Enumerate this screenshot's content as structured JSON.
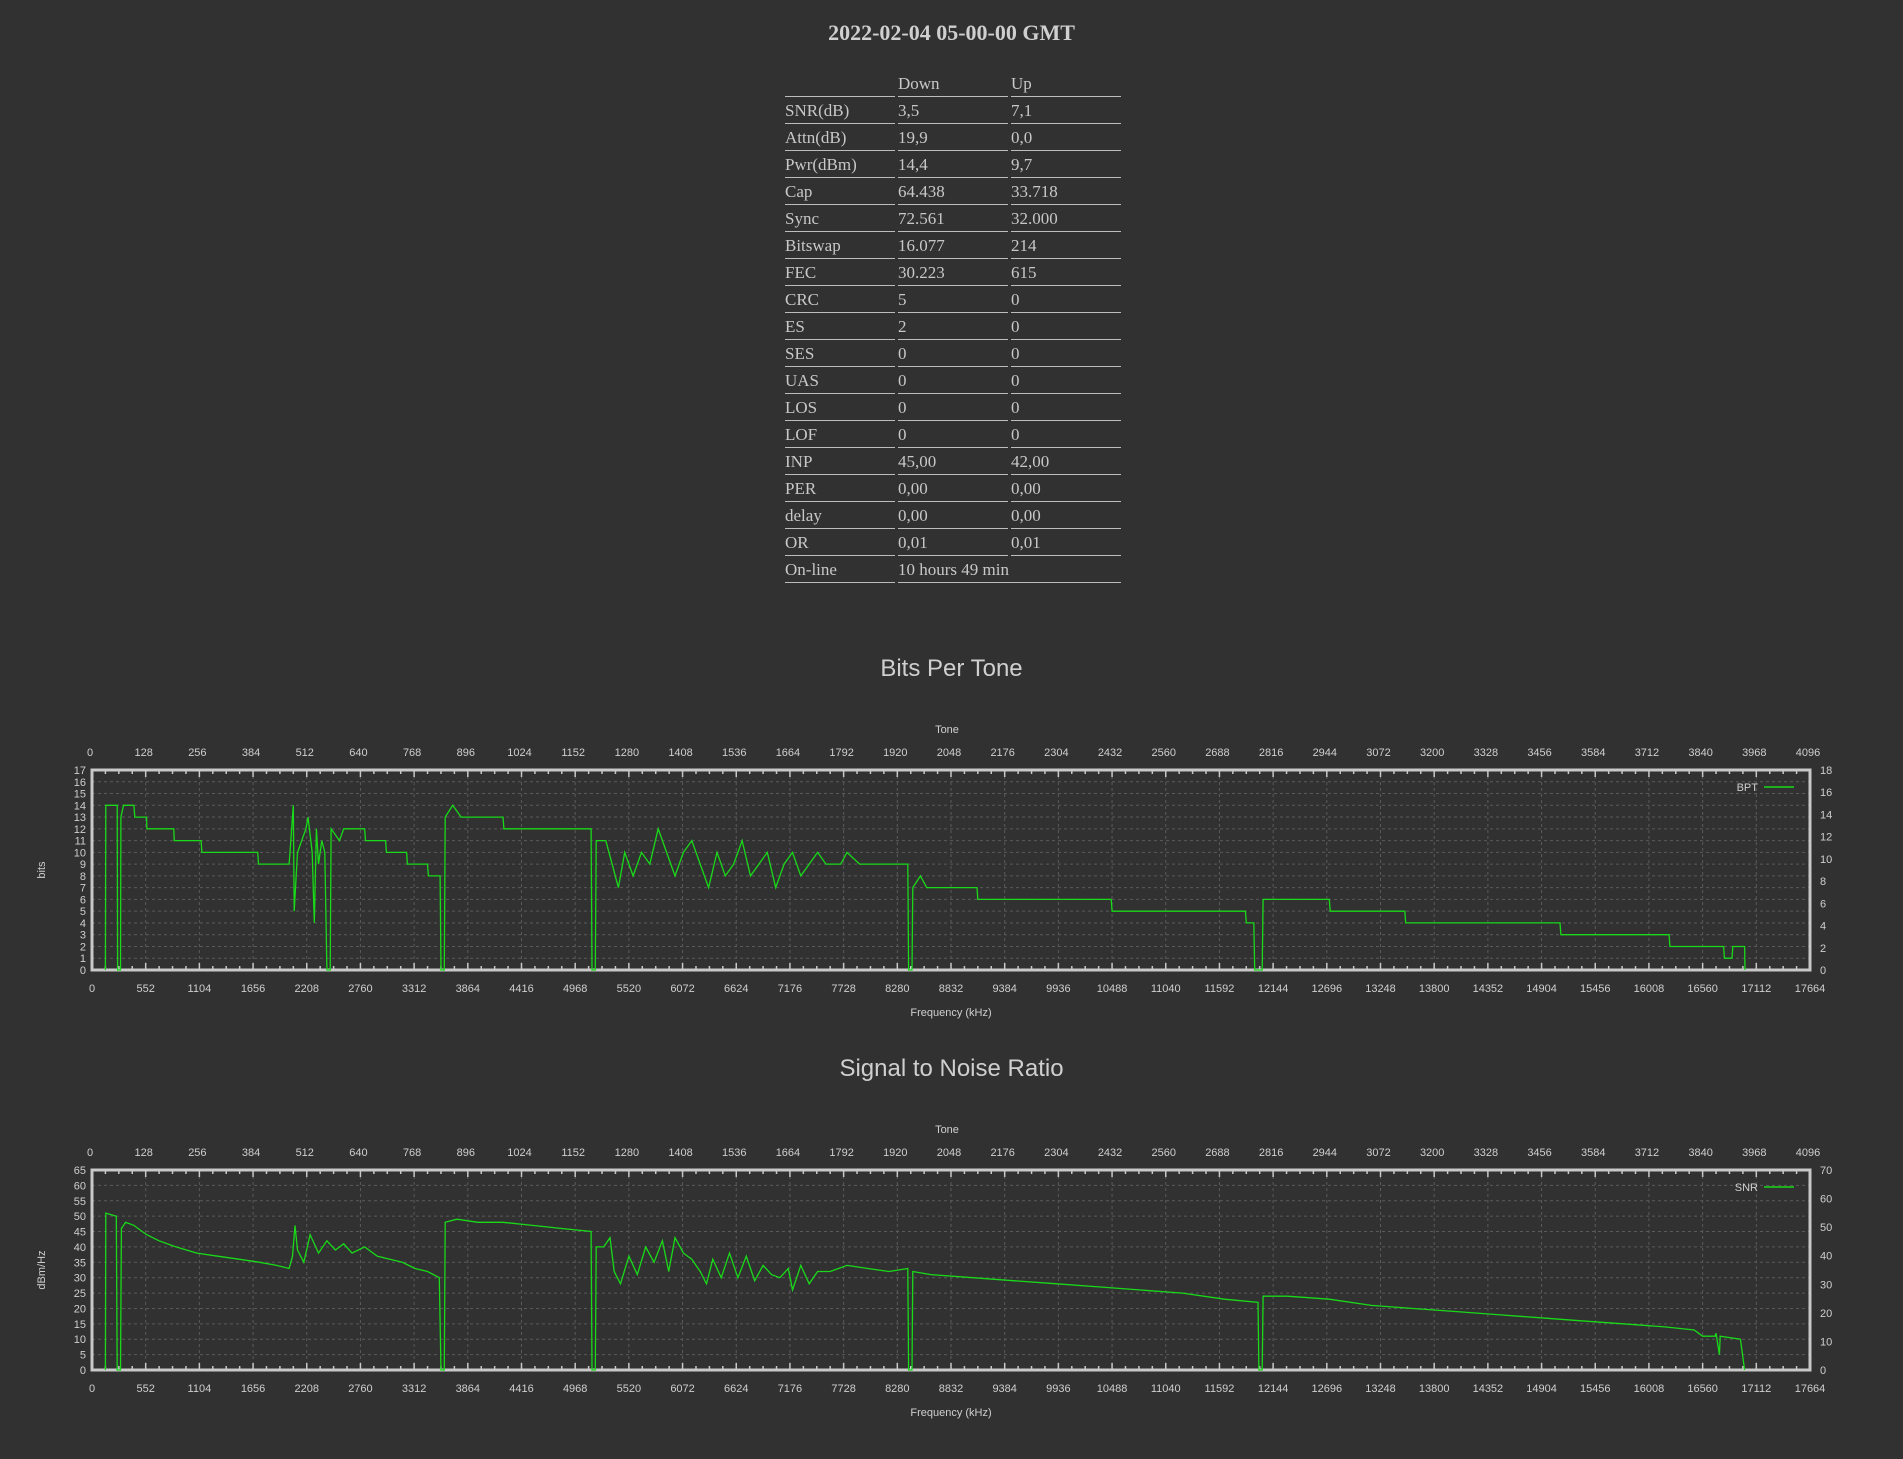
{
  "title": "2022-02-04 05-00-00 GMT",
  "stats": {
    "headers": [
      "",
      "Down",
      "Up"
    ],
    "rows": [
      [
        "SNR(dB)",
        "3,5",
        "7,1"
      ],
      [
        "Attn(dB)",
        "19,9",
        "0,0"
      ],
      [
        "Pwr(dBm)",
        "14,4",
        "9,7"
      ],
      [
        "Cap",
        "64.438",
        "33.718"
      ],
      [
        "Sync",
        "72.561",
        "32.000"
      ],
      [
        "Bitswap",
        "16.077",
        "214"
      ],
      [
        "FEC",
        "30.223",
        "615"
      ],
      [
        "CRC",
        "5",
        "0"
      ],
      [
        "ES",
        "2",
        "0"
      ],
      [
        "SES",
        "0",
        "0"
      ],
      [
        "UAS",
        "0",
        "0"
      ],
      [
        "LOS",
        "0",
        "0"
      ],
      [
        "LOF",
        "0",
        "0"
      ],
      [
        "INP",
        "45,00",
        "42,00"
      ],
      [
        "PER",
        "0,00",
        "0,00"
      ],
      [
        "delay",
        "0,00",
        "0,00"
      ],
      [
        "OR",
        "0,01",
        "0,01"
      ],
      [
        "On-line",
        "10 hours 49 min",
        ""
      ]
    ]
  },
  "colors": {
    "line": "#19d919",
    "axis": "#c8c8c8",
    "grid": "#5a5a5a"
  },
  "chart_data": [
    {
      "type": "line",
      "title": "Bits Per Tone",
      "x2label": "Tone",
      "xlabel": "Frequency (kHz)",
      "ylabel": "bits",
      "legend": "BPT",
      "legend_position": "top-right",
      "grid": true,
      "x_ticks": [
        "0",
        "552",
        "1104",
        "1656",
        "2208",
        "2760",
        "3312",
        "3864",
        "4416",
        "4968",
        "5520",
        "6072",
        "6624",
        "7176",
        "7728",
        "8280",
        "8832",
        "9384",
        "9936",
        "10488",
        "11040",
        "11592",
        "12144",
        "12696",
        "13248",
        "13800",
        "14352",
        "14904",
        "15456",
        "16008",
        "16560",
        "17112",
        "17664"
      ],
      "x2_ticks": [
        "0",
        "128",
        "256",
        "384",
        "512",
        "640",
        "768",
        "896",
        "1024",
        "1152",
        "1280",
        "1408",
        "1536",
        "1664",
        "1792",
        "1920",
        "2048",
        "2176",
        "2304",
        "2432",
        "2560",
        "2688",
        "2816",
        "2944",
        "3072",
        "3200",
        "3328",
        "3456",
        "3584",
        "3712",
        "3840",
        "3968",
        "4096"
      ],
      "ylim": [
        0,
        17
      ],
      "y_ticks": [
        "0",
        "1",
        "2",
        "3",
        "4",
        "5",
        "6",
        "7",
        "8",
        "9",
        "10",
        "11",
        "12",
        "13",
        "14",
        "15",
        "16",
        "17"
      ],
      "y2lim": [
        0,
        18
      ],
      "y2_ticks": [
        "0",
        "2",
        "4",
        "6",
        "8",
        "10",
        "12",
        "14",
        "16",
        "18"
      ],
      "xlim": [
        0,
        4096
      ],
      "points": [
        [
          32,
          0
        ],
        [
          33,
          14
        ],
        [
          60,
          14
        ],
        [
          61,
          0
        ],
        [
          68,
          0
        ],
        [
          69,
          13
        ],
        [
          75,
          14
        ],
        [
          100,
          14
        ],
        [
          102,
          13
        ],
        [
          130,
          13
        ],
        [
          131,
          12
        ],
        [
          195,
          12
        ],
        [
          196,
          11
        ],
        [
          260,
          11
        ],
        [
          262,
          10
        ],
        [
          395,
          10
        ],
        [
          397,
          9
        ],
        [
          470,
          9
        ],
        [
          472,
          10
        ],
        [
          480,
          14
        ],
        [
          482,
          5
        ],
        [
          490,
          10
        ],
        [
          510,
          12
        ],
        [
          515,
          13
        ],
        [
          525,
          10
        ],
        [
          530,
          4
        ],
        [
          535,
          12
        ],
        [
          540,
          9
        ],
        [
          548,
          11
        ],
        [
          555,
          10
        ],
        [
          560,
          0
        ],
        [
          568,
          0
        ],
        [
          570,
          12
        ],
        [
          590,
          11
        ],
        [
          600,
          12
        ],
        [
          650,
          12
        ],
        [
          652,
          11
        ],
        [
          700,
          11
        ],
        [
          702,
          10
        ],
        [
          750,
          10
        ],
        [
          752,
          9
        ],
        [
          800,
          9
        ],
        [
          802,
          8
        ],
        [
          830,
          8
        ],
        [
          832,
          0
        ],
        [
          840,
          0
        ],
        [
          842,
          13
        ],
        [
          860,
          14
        ],
        [
          880,
          13
        ],
        [
          980,
          13
        ],
        [
          982,
          12
        ],
        [
          1190,
          12
        ],
        [
          1192,
          0
        ],
        [
          1200,
          0
        ],
        [
          1202,
          11
        ],
        [
          1225,
          11
        ],
        [
          1240,
          9
        ],
        [
          1255,
          7
        ],
        [
          1270,
          10
        ],
        [
          1290,
          8
        ],
        [
          1310,
          10
        ],
        [
          1330,
          9
        ],
        [
          1350,
          12
        ],
        [
          1370,
          10
        ],
        [
          1390,
          8
        ],
        [
          1410,
          10
        ],
        [
          1430,
          11
        ],
        [
          1450,
          9
        ],
        [
          1470,
          7
        ],
        [
          1490,
          10
        ],
        [
          1510,
          8
        ],
        [
          1530,
          9
        ],
        [
          1550,
          11
        ],
        [
          1570,
          8
        ],
        [
          1590,
          9
        ],
        [
          1610,
          10
        ],
        [
          1630,
          7
        ],
        [
          1650,
          9
        ],
        [
          1670,
          10
        ],
        [
          1690,
          8
        ],
        [
          1710,
          9
        ],
        [
          1730,
          10
        ],
        [
          1750,
          9
        ],
        [
          1785,
          9
        ],
        [
          1800,
          10
        ],
        [
          1830,
          9
        ],
        [
          1945,
          9
        ],
        [
          1947,
          0
        ],
        [
          1955,
          0
        ],
        [
          1957,
          7
        ],
        [
          1975,
          8
        ],
        [
          1990,
          7
        ],
        [
          2110,
          7
        ],
        [
          2112,
          6
        ],
        [
          2430,
          6
        ],
        [
          2432,
          5
        ],
        [
          2750,
          5
        ],
        [
          2752,
          4
        ],
        [
          2770,
          4
        ],
        [
          2772,
          0
        ],
        [
          2790,
          0
        ],
        [
          2792,
          6
        ],
        [
          2950,
          6
        ],
        [
          2952,
          5
        ],
        [
          3130,
          5
        ],
        [
          3132,
          4
        ],
        [
          3500,
          4
        ],
        [
          3502,
          3
        ],
        [
          3760,
          3
        ],
        [
          3762,
          2
        ],
        [
          3890,
          2
        ],
        [
          3892,
          1
        ],
        [
          3910,
          1
        ],
        [
          3912,
          2
        ],
        [
          3940,
          2
        ],
        [
          3941,
          0
        ]
      ]
    },
    {
      "type": "line",
      "title": "Signal to Noise Ratio",
      "x2label": "Tone",
      "xlabel": "Frequency (kHz)",
      "ylabel": "dBm/Hz",
      "legend": "SNR",
      "legend_position": "top-right",
      "grid": true,
      "x_ticks": [
        "0",
        "552",
        "1104",
        "1656",
        "2208",
        "2760",
        "3312",
        "3864",
        "4416",
        "4968",
        "5520",
        "6072",
        "6624",
        "7176",
        "7728",
        "8280",
        "8832",
        "9384",
        "9936",
        "10488",
        "11040",
        "11592",
        "12144",
        "12696",
        "13248",
        "13800",
        "14352",
        "14904",
        "15456",
        "16008",
        "16560",
        "17112",
        "17664"
      ],
      "x2_ticks": [
        "0",
        "128",
        "256",
        "384",
        "512",
        "640",
        "768",
        "896",
        "1024",
        "1152",
        "1280",
        "1408",
        "1536",
        "1664",
        "1792",
        "1920",
        "2048",
        "2176",
        "2304",
        "2432",
        "2560",
        "2688",
        "2816",
        "2944",
        "3072",
        "3200",
        "3328",
        "3456",
        "3584",
        "3712",
        "3840",
        "3968",
        "4096"
      ],
      "ylim": [
        0,
        65
      ],
      "y_ticks": [
        "0",
        "5",
        "10",
        "15",
        "20",
        "25",
        "30",
        "35",
        "40",
        "45",
        "50",
        "55",
        "60",
        "65"
      ],
      "y2lim": [
        0,
        70
      ],
      "y2_ticks": [
        "0",
        "10",
        "20",
        "30",
        "40",
        "50",
        "60",
        "70"
      ],
      "xlim": [
        0,
        4096
      ],
      "points": [
        [
          32,
          0
        ],
        [
          33,
          51
        ],
        [
          58,
          50
        ],
        [
          60,
          0
        ],
        [
          68,
          0
        ],
        [
          70,
          46
        ],
        [
          80,
          48
        ],
        [
          100,
          47
        ],
        [
          130,
          44
        ],
        [
          160,
          42
        ],
        [
          200,
          40
        ],
        [
          250,
          38
        ],
        [
          300,
          37
        ],
        [
          350,
          36
        ],
        [
          400,
          35
        ],
        [
          440,
          34
        ],
        [
          470,
          33
        ],
        [
          478,
          37
        ],
        [
          484,
          47
        ],
        [
          490,
          39
        ],
        [
          505,
          35
        ],
        [
          520,
          44
        ],
        [
          540,
          38
        ],
        [
          560,
          42
        ],
        [
          580,
          39
        ],
        [
          600,
          41
        ],
        [
          620,
          38
        ],
        [
          650,
          40
        ],
        [
          680,
          37
        ],
        [
          710,
          36
        ],
        [
          740,
          35
        ],
        [
          770,
          33
        ],
        [
          800,
          32
        ],
        [
          828,
          30
        ],
        [
          832,
          0
        ],
        [
          840,
          0
        ],
        [
          842,
          48
        ],
        [
          870,
          49
        ],
        [
          920,
          48
        ],
        [
          980,
          48
        ],
        [
          1050,
          47
        ],
        [
          1120,
          46
        ],
        [
          1190,
          45
        ],
        [
          1192,
          0
        ],
        [
          1200,
          0
        ],
        [
          1202,
          40
        ],
        [
          1220,
          40
        ],
        [
          1235,
          43
        ],
        [
          1245,
          32
        ],
        [
          1260,
          28
        ],
        [
          1280,
          37
        ],
        [
          1300,
          31
        ],
        [
          1320,
          40
        ],
        [
          1340,
          35
        ],
        [
          1360,
          42
        ],
        [
          1375,
          32
        ],
        [
          1390,
          43
        ],
        [
          1410,
          38
        ],
        [
          1430,
          36
        ],
        [
          1450,
          32
        ],
        [
          1465,
          28
        ],
        [
          1480,
          36
        ],
        [
          1500,
          30
        ],
        [
          1520,
          38
        ],
        [
          1540,
          30
        ],
        [
          1560,
          37
        ],
        [
          1580,
          29
        ],
        [
          1600,
          34
        ],
        [
          1620,
          31
        ],
        [
          1640,
          30
        ],
        [
          1660,
          33
        ],
        [
          1670,
          26
        ],
        [
          1690,
          34
        ],
        [
          1710,
          28
        ],
        [
          1730,
          32
        ],
        [
          1760,
          32
        ],
        [
          1800,
          34
        ],
        [
          1850,
          33
        ],
        [
          1900,
          32
        ],
        [
          1945,
          33
        ],
        [
          1947,
          0
        ],
        [
          1955,
          0
        ],
        [
          1957,
          32
        ],
        [
          2000,
          31
        ],
        [
          2100,
          30
        ],
        [
          2200,
          29
        ],
        [
          2300,
          28
        ],
        [
          2400,
          27
        ],
        [
          2500,
          26
        ],
        [
          2600,
          25
        ],
        [
          2700,
          23
        ],
        [
          2780,
          22
        ],
        [
          2782,
          0
        ],
        [
          2790,
          0
        ],
        [
          2792,
          24
        ],
        [
          2850,
          24
        ],
        [
          2950,
          23
        ],
        [
          3050,
          21
        ],
        [
          3150,
          20
        ],
        [
          3250,
          19
        ],
        [
          3350,
          18
        ],
        [
          3450,
          17
        ],
        [
          3550,
          16
        ],
        [
          3650,
          15
        ],
        [
          3750,
          14
        ],
        [
          3820,
          13
        ],
        [
          3840,
          11
        ],
        [
          3870,
          11
        ],
        [
          3872,
          12
        ],
        [
          3880,
          5
        ],
        [
          3882,
          11
        ],
        [
          3930,
          10
        ],
        [
          3940,
          0
        ]
      ]
    }
  ]
}
